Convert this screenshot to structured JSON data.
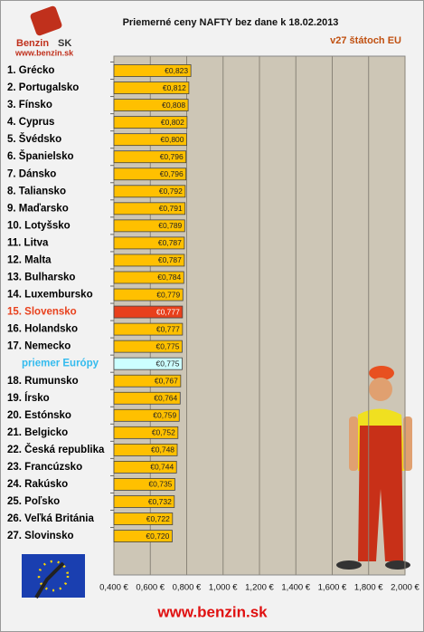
{
  "chart_data": {
    "type": "barh",
    "title": "Priemerné ceny NAFTY bez dane k 18.02.2013",
    "subtitle": "v27 štátoch EU",
    "logo": {
      "name": "Benzin",
      "suffix": "SK",
      "url": "www.benzin.sk"
    },
    "footer": "www.benzin.sk",
    "categories": [
      "1. Grécko",
      "2. Portugalsko",
      "3. Fínsko",
      "4. Cyprus",
      "5. Švédsko",
      "6. Španielsko",
      "7. Dánsko",
      "8. Taliansko",
      "9. Maďarsko",
      "10. Lotyšsko",
      "11. Litva",
      "12. Malta",
      "13. Bulharsko",
      "14. Luxembursko",
      "15. Slovensko",
      "16. Holandsko",
      "17. Nemecko",
      "priemer Európy",
      "18. Rumunsko",
      "19. Írsko",
      "20. Estónsko",
      "21. Belgicko",
      "22. Česká republika",
      "23. Francúzsko",
      "24. Rakúsko",
      "25. Poľsko",
      "26. Veľká Británia",
      "27. Slovinsko"
    ],
    "values": [
      0.823,
      0.812,
      0.808,
      0.802,
      0.8,
      0.796,
      0.796,
      0.792,
      0.791,
      0.789,
      0.787,
      0.787,
      0.784,
      0.779,
      0.777,
      0.777,
      0.775,
      0.775,
      0.767,
      0.764,
      0.759,
      0.752,
      0.748,
      0.744,
      0.735,
      0.732,
      0.722,
      0.72
    ],
    "value_labels": [
      "€0,823",
      "€0,812",
      "€0,808",
      "€0,802",
      "€0,800",
      "€0,796",
      "€0,796",
      "€0,792",
      "€0,791",
      "€0,789",
      "€0,787",
      "€0,787",
      "€0,784",
      "€0,779",
      "€0,777",
      "€0,777",
      "€0,775",
      "€0,775",
      "€0,767",
      "€0,764",
      "€0,759",
      "€0,752",
      "€0,748",
      "€0,744",
      "€0,735",
      "€0,732",
      "€0,722",
      "€0,720"
    ],
    "color": "#ffc000",
    "highlights": [
      {
        "index": 14,
        "color": "#e8401c",
        "label_color": "#e8401c"
      },
      {
        "index": 17,
        "color": "#ccffff",
        "label_color": "#33bbee"
      }
    ],
    "xlim": [
      0.4,
      2.0
    ],
    "xticks": [
      {
        "value": 0.4,
        "label": "0,400 €"
      },
      {
        "value": 0.6,
        "label": "0,600 €"
      },
      {
        "value": 0.8,
        "label": "0,800 €"
      },
      {
        "value": 1.0,
        "label": "1,000 €"
      },
      {
        "value": 1.2,
        "label": "1,200 €"
      },
      {
        "value": 1.4,
        "label": "1,400 €"
      },
      {
        "value": 1.6,
        "label": "1,600 €"
      },
      {
        "value": 1.8,
        "label": "1,800 €"
      },
      {
        "value": 2.0,
        "label": "2,000 €"
      }
    ],
    "grid": true
  }
}
